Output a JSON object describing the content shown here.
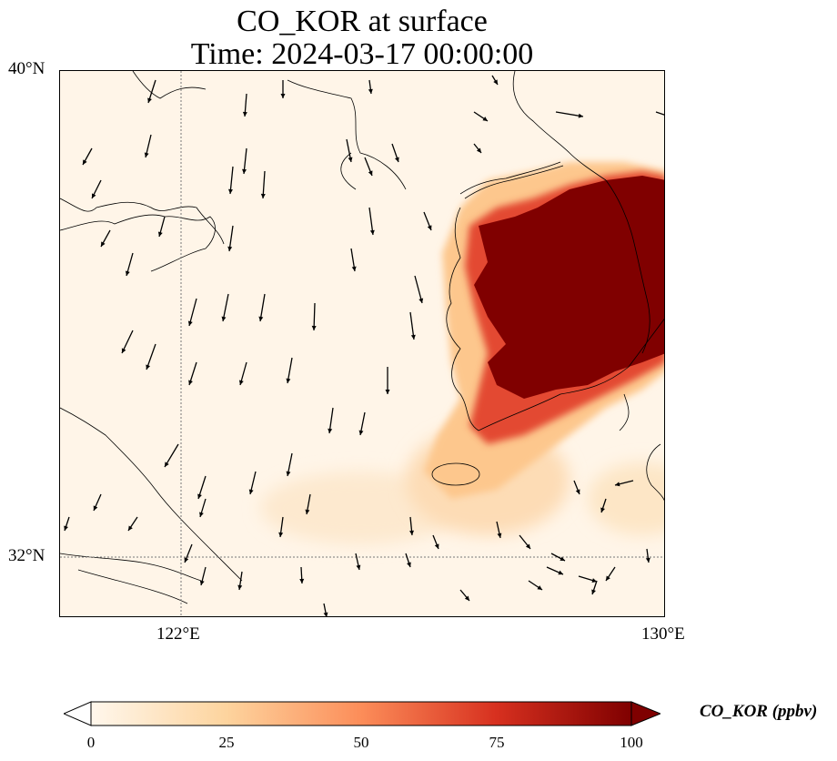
{
  "title": {
    "line1": "CO_KOR at surface",
    "line2": "Time: 2024-03-17 00:00:00"
  },
  "axes": {
    "lat_labels": [
      "40°N",
      "32°N"
    ],
    "lon_labels": [
      "122°E",
      "130°E"
    ],
    "lat_range": [
      31,
      40
    ],
    "lon_range": [
      120,
      130
    ],
    "gridlines": {
      "lat": 32,
      "lon": 122,
      "style": "dotted"
    }
  },
  "colorbar": {
    "label": "CO_KOR (ppbv)",
    "ticks": [
      "0",
      "25",
      "50",
      "75",
      "100"
    ],
    "min": 0,
    "max": 100,
    "extend": "both",
    "colormap": "OrRd",
    "colors": [
      "#fff7ec",
      "#fdd49e",
      "#fc8d59",
      "#d7301f",
      "#7f0000"
    ]
  },
  "colors": {
    "background": "#fff5e8",
    "coast": "#000000",
    "max_concentration": "#800000"
  },
  "chart_data": {
    "type": "map",
    "variable": "CO_KOR",
    "units": "ppbv",
    "level": "surface",
    "time": "2024-03-17 00:00:00",
    "features": [
      "concentration field",
      "wind vectors",
      "coastlines",
      "Korean peninsula plume"
    ]
  }
}
